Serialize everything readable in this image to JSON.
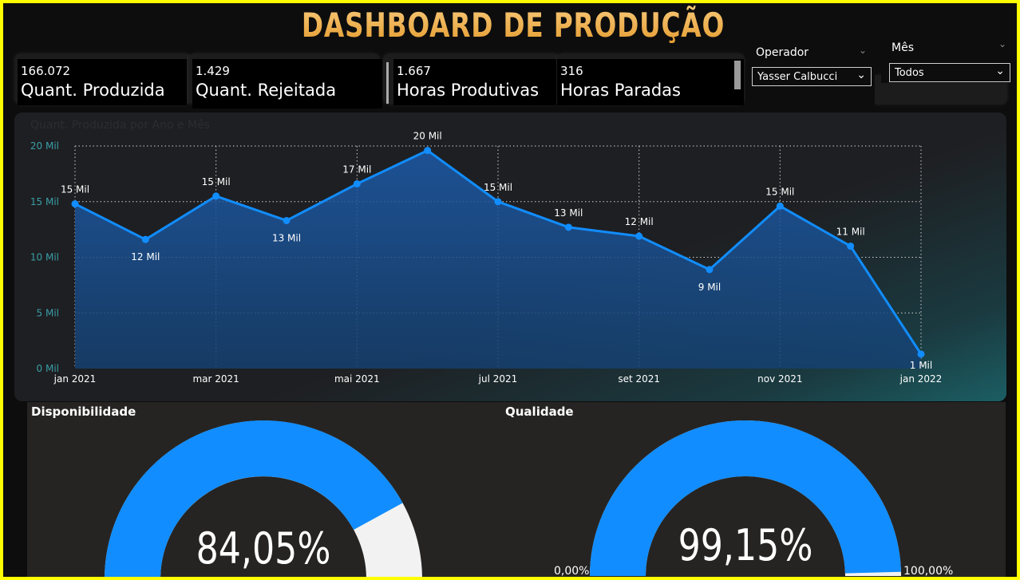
{
  "dashboard": {
    "title": "DASHBOARD DE PRODUÇÃO"
  },
  "kpis": [
    {
      "value": "166.072",
      "label": "Quant. Produzida"
    },
    {
      "value": "1.429",
      "label": "Quant. Rejeitada"
    },
    {
      "value": "1.667",
      "label": "Horas Produtivas"
    },
    {
      "value": "316",
      "label": "Horas Paradas"
    }
  ],
  "filters": {
    "operador": {
      "label": "Operador",
      "selected": "Yasser Calbucci"
    },
    "mes": {
      "label": "Mês",
      "selected": "Todos"
    }
  },
  "chart_data": [
    {
      "type": "area",
      "title": "Quant. Produzida por Ano e Mês",
      "x": [
        "jan 2021",
        "fev 2021",
        "mar 2021",
        "abr 2021",
        "mai 2021",
        "jun 2021",
        "jul 2021",
        "ago 2021",
        "set 2021",
        "out 2021",
        "nov 2021",
        "dez 2021",
        "jan 2022"
      ],
      "values": [
        14800,
        11600,
        15500,
        13300,
        16600,
        19600,
        15000,
        12700,
        11900,
        8900,
        14600,
        11000,
        1300
      ],
      "data_labels": [
        "15 Mil",
        "12 Mil",
        "15 Mil",
        "13 Mil",
        "17 Mil",
        "20 Mil",
        "15 Mil",
        "13 Mil",
        "12 Mil",
        "9 Mil",
        "15 Mil",
        "11 Mil",
        "1 Mil"
      ],
      "x_tick_labels": [
        "jan 2021",
        "mar 2021",
        "mai 2021",
        "jul 2021",
        "set 2021",
        "nov 2021",
        "jan 2022"
      ],
      "y_tick_labels": [
        "0 Mil",
        "5 Mil",
        "10 Mil",
        "15 Mil",
        "20 Mil"
      ],
      "ylim": [
        0,
        20000
      ],
      "grid": true,
      "line_color": "#118dff"
    },
    {
      "type": "gauge",
      "title": "Disponibilidade",
      "value": 84.05,
      "value_label": "84,05%",
      "range": [
        0,
        100
      ],
      "fill_color": "#118dff",
      "track_color": "#f2f2f2"
    },
    {
      "type": "gauge",
      "title": "Qualidade",
      "value": 99.15,
      "value_label": "99,15%",
      "min_label": "0,00%",
      "max_label": "100,00%",
      "range": [
        0,
        100
      ],
      "fill_color": "#118dff",
      "track_color": "#f2f2f2"
    }
  ]
}
